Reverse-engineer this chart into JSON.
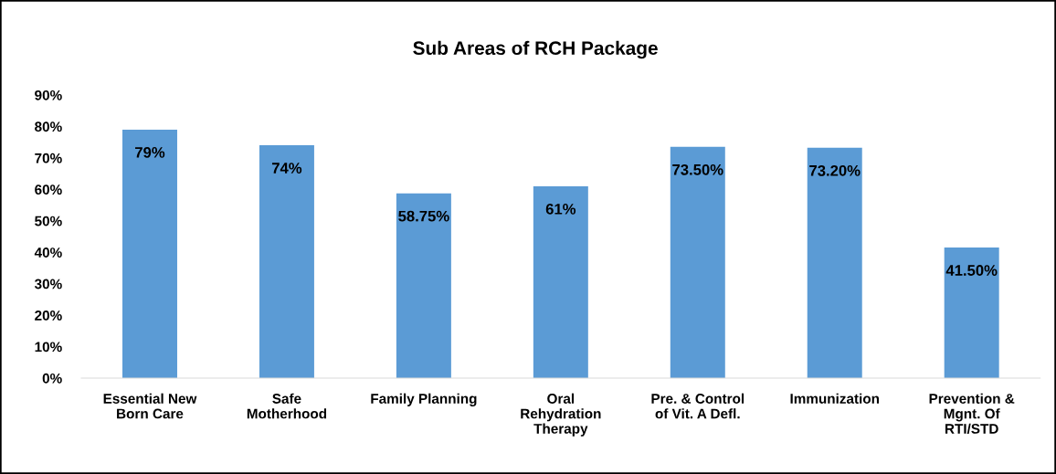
{
  "chart_data": {
    "type": "bar",
    "title": "Sub Areas of RCH Package",
    "categories": [
      "Essential New\nBorn Care",
      "Safe\nMotherhood",
      "Family Planning",
      "Oral\nRehydration\nTherapy",
      "Pre. & Control\nof Vit. A Defl.",
      "Immunization",
      "Prevention &\nMgnt. Of\nRTI/STD"
    ],
    "values": [
      79,
      74,
      58.75,
      61,
      73.5,
      73.2,
      41.5
    ],
    "value_labels": [
      "79%",
      "74%",
      "58.75%",
      "61%",
      "73.50%",
      "73.20%",
      "41.50%"
    ],
    "color": "#5b9bd5",
    "ylim": [
      0,
      90
    ],
    "yticks": [
      {
        "value": 0,
        "label": "0%"
      },
      {
        "value": 10,
        "label": "10%"
      },
      {
        "value": 20,
        "label": "20%"
      },
      {
        "value": 30,
        "label": "30%"
      },
      {
        "value": 40,
        "label": "40%"
      },
      {
        "value": 50,
        "label": "50%"
      },
      {
        "value": 60,
        "label": "60%"
      },
      {
        "value": 70,
        "label": "70%"
      },
      {
        "value": 80,
        "label": "80%"
      },
      {
        "value": 90,
        "label": "90%"
      }
    ],
    "grid": false
  }
}
